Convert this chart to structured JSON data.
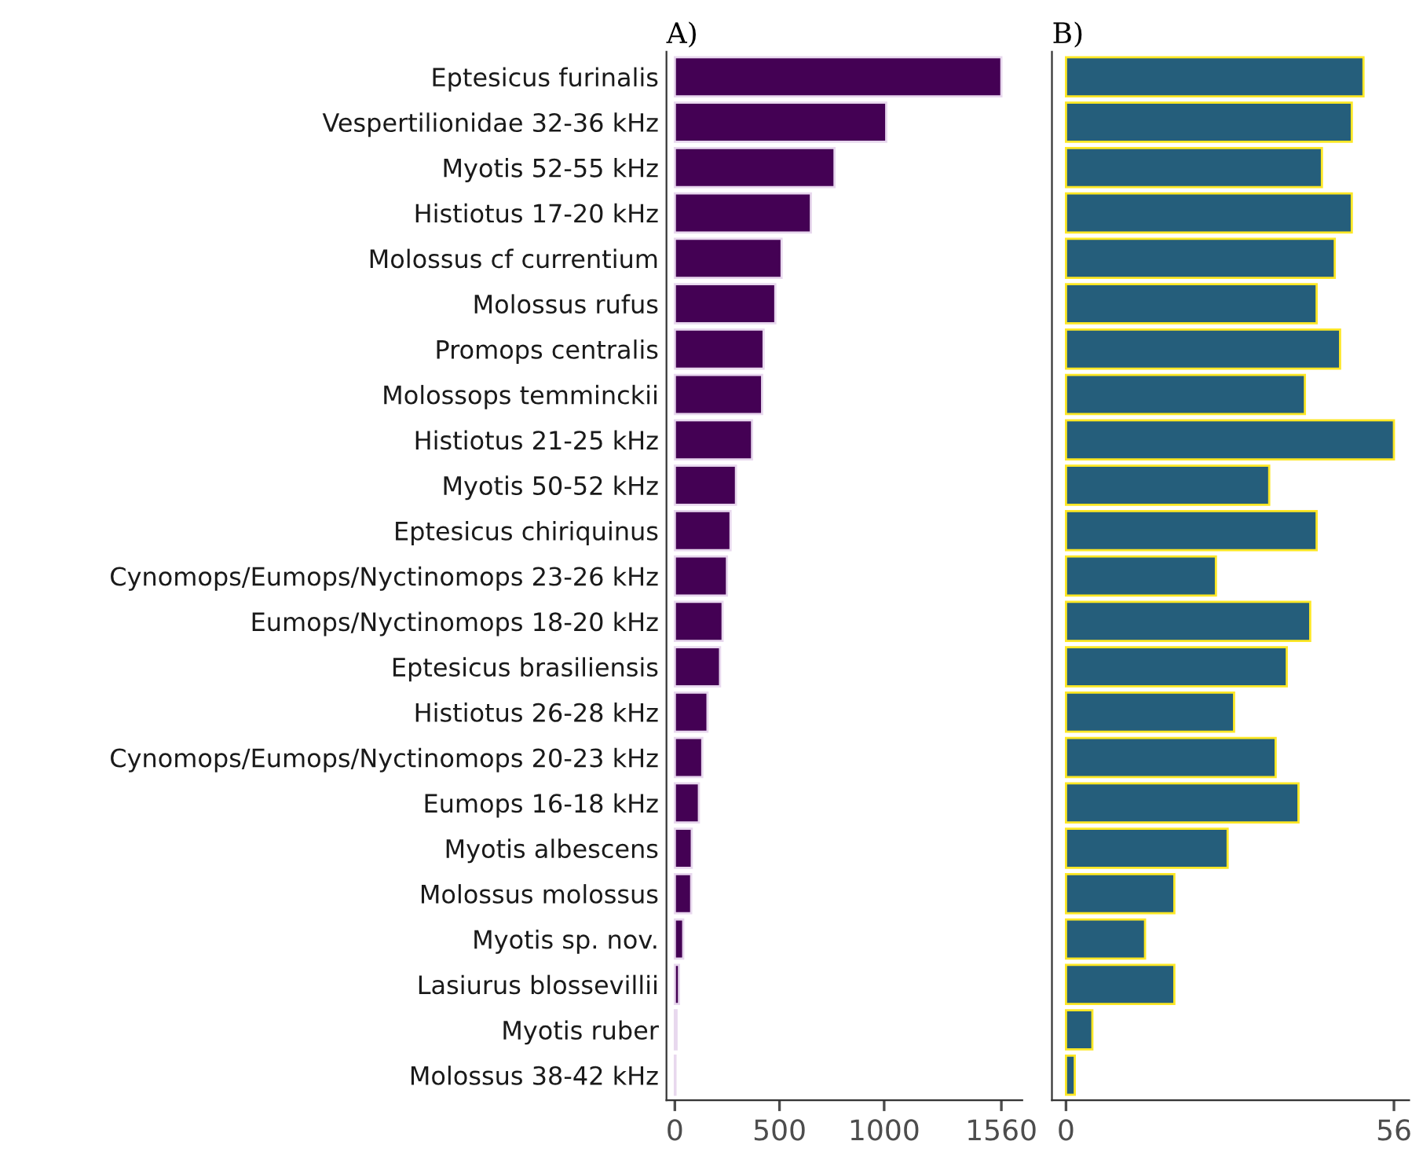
{
  "chart_data": [
    {
      "type": "bar",
      "orientation": "horizontal",
      "title": "A)",
      "categories": [
        "Eptesicus furinalis",
        "Vespertilionidae 32-36 kHz",
        "Myotis 52-55 kHz",
        "Histiotus 17-20 kHz",
        "Molossus cf currentium",
        "Molossus rufus",
        "Promops centralis",
        "Molossops temminckii",
        "Histiotus 21-25 kHz",
        "Myotis 50-52 kHz",
        "Eptesicus chiriquinus",
        "Cynomops/Eumops/Nyctinomops 23-26 kHz",
        "Eumops/Nyctinomops 18-20 kHz",
        "Eptesicus brasiliensis",
        "Histiotus 26-28 kHz",
        "Cynomops/Eumops/Nyctinomops 20-23 kHz",
        "Eumops 16-18 kHz",
        "Myotis albescens",
        "Molossus molossus",
        "Myotis sp. nov.",
        "Lasiurus blossevillii",
        "Myotis ruber",
        "Molossus 38-42 kHz"
      ],
      "values": [
        1560,
        1010,
        763,
        650,
        510,
        480,
        424,
        417,
        369,
        292,
        266,
        249,
        228,
        216,
        156,
        131,
        115,
        81,
        78,
        40,
        20,
        8,
        3
      ],
      "color": "#440154",
      "xlim": [
        -40,
        1660
      ],
      "xticks": [
        0,
        500,
        1000,
        1560
      ],
      "grid": false
    },
    {
      "type": "bar",
      "orientation": "horizontal",
      "title": "B)",
      "tick_labels": "x",
      "categories": [
        null,
        null,
        null,
        null,
        null,
        null,
        null,
        null,
        null,
        null,
        null,
        null,
        null,
        null,
        null,
        null,
        null,
        null,
        null,
        null,
        null,
        null,
        null
      ],
      "values": [
        50.8,
        48.8,
        43.7,
        48.8,
        45.9,
        42.8,
        46.8,
        40.8,
        56,
        34.7,
        42.8,
        25.6,
        41.7,
        37.7,
        28.7,
        35.8,
        39.7,
        27.6,
        18.5,
        13.5,
        18.5,
        4.5,
        1.5
      ],
      "color": "#255e7b",
      "xlim": [
        -2.4,
        58.6
      ],
      "xticks": [
        0,
        56
      ],
      "grid": false
    }
  ]
}
